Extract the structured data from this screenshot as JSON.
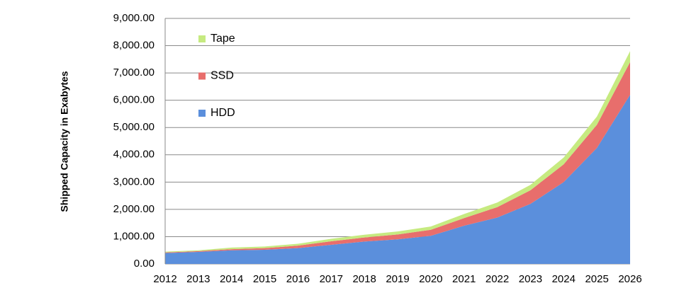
{
  "chart_data": {
    "type": "stacked-area",
    "y_label": "Shipped Capacity in Exabytes",
    "categories": [
      "2012",
      "2013",
      "2014",
      "2015",
      "2016",
      "2017",
      "2018",
      "2019",
      "2020",
      "2021",
      "2022",
      "2023",
      "2024",
      "2025",
      "2026"
    ],
    "series": [
      {
        "name": "HDD",
        "color": "#5b8fdc",
        "values": [
          400,
          440,
          500,
          520,
          580,
          700,
          820,
          900,
          1030,
          1400,
          1700,
          2200,
          3000,
          4250,
          6200
        ]
      },
      {
        "name": "SSD",
        "color": "#e86e6c",
        "values": [
          20,
          30,
          40,
          60,
          90,
          130,
          150,
          180,
          220,
          280,
          380,
          500,
          650,
          850,
          1200
        ]
      },
      {
        "name": "Tape",
        "color": "#c6ea80",
        "values": [
          30,
          30,
          60,
          60,
          70,
          90,
          100,
          110,
          120,
          150,
          170,
          200,
          250,
          300,
          400
        ]
      }
    ],
    "ylim": [
      0,
      9000
    ],
    "yticks": [
      {
        "value": 0,
        "label": "0.00"
      },
      {
        "value": 1000,
        "label": "1,000.00"
      },
      {
        "value": 2000,
        "label": "2,000.00"
      },
      {
        "value": 3000,
        "label": "3,000.00"
      },
      {
        "value": 4000,
        "label": "4,000.00"
      },
      {
        "value": 5000,
        "label": "5,000.00"
      },
      {
        "value": 6000,
        "label": "6,000.00"
      },
      {
        "value": 7000,
        "label": "7,000.00"
      },
      {
        "value": 8000,
        "label": "8,000.00"
      },
      {
        "value": 9000,
        "label": "9,000.00"
      }
    ],
    "grid": true,
    "legend": "upper left"
  }
}
